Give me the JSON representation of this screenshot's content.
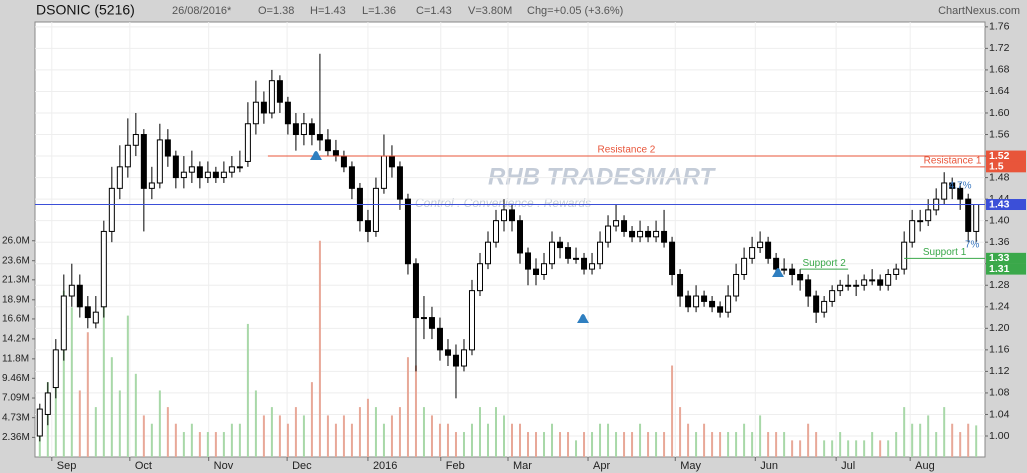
{
  "chart_data": {
    "type": "candlestick",
    "title": "DSONIC (5216)",
    "date": "26/08/2016*",
    "info": [
      "O=1.38",
      "H=1.43",
      "L=1.36",
      "C=1.43",
      "V=3.80M",
      "Chg=+0.05 (+3.6%)"
    ],
    "source": "ChartNexus.com",
    "watermark": "RHB TRADESMART",
    "watermark_tagline": "Control . Convenience . Rewards",
    "grid": true,
    "up_color": "#ffffff",
    "down_color": "#000000",
    "volume_up_color": "#a8d8a8",
    "volume_down_color": "#e8a898",
    "xlim": [
      -0.6,
      118.1
    ],
    "xticks": [
      {
        "value": 1.5,
        "label": "Sep"
      },
      {
        "value": 11.25,
        "label": "Oct"
      },
      {
        "value": 21.1,
        "label": "Nov"
      },
      {
        "value": 30.9,
        "label": "Dec"
      },
      {
        "value": 41,
        "label": "2016"
      },
      {
        "value": 50.1,
        "label": "Feb"
      },
      {
        "value": 58.5,
        "label": "Mar"
      },
      {
        "value": 68.5,
        "label": "Apr"
      },
      {
        "value": 79.4,
        "label": "May"
      },
      {
        "value": 89.4,
        "label": "Jun"
      },
      {
        "value": 99.5,
        "label": "Jul"
      },
      {
        "value": 108.75,
        "label": "Aug"
      }
    ],
    "ylim": [
      0.961,
      1.769
    ],
    "yticks": [
      {
        "value": 1.0,
        "label": "1.00"
      },
      1.04,
      1.08,
      1.12,
      1.16,
      {
        "value": 1.2,
        "label": "1.20"
      },
      1.24,
      1.28,
      1.32,
      1.36,
      {
        "value": 1.4,
        "label": "1.40"
      },
      1.44,
      1.48,
      1.52,
      1.56,
      {
        "value": 1.6,
        "label": "1.60"
      },
      1.64,
      1.68,
      1.72,
      1.76
    ],
    "y2lim": [
      0,
      52.3
    ],
    "y2ticks": [
      {
        "value": 2.36,
        "label": "2.36M"
      },
      {
        "value": 4.73,
        "label": "4.73M"
      },
      {
        "value": 7.09,
        "label": "7.09M"
      },
      {
        "value": 9.46,
        "label": "9.46M"
      },
      {
        "value": 11.8,
        "label": "11.8M"
      },
      {
        "value": 14.2,
        "label": "14.2M"
      },
      {
        "value": 16.6,
        "label": "16.6M"
      },
      {
        "value": 18.9,
        "label": "18.9M"
      },
      {
        "value": 21.3,
        "label": "21.3M"
      },
      {
        "value": 23.6,
        "label": "23.6M"
      },
      {
        "value": 26.0,
        "label": "26.0M"
      }
    ],
    "levels": [
      {
        "name": "Resistance 2",
        "value": 1.52,
        "color": "#e8553a",
        "from": 28.5,
        "to": 118.1
      },
      {
        "name": "Resistance 1",
        "value": 1.5,
        "color": "#e8553a",
        "from": 110,
        "to": 118.1
      },
      {
        "value": 1.43,
        "color": "#3b4fd8",
        "from": -0.6,
        "to": 118.1
      },
      {
        "name": "Support 1",
        "value": 1.33,
        "color": "#3aa84a",
        "from": 108,
        "to": 118.1
      },
      {
        "name": "Support 2",
        "value": 1.31,
        "color": "#3aa84a",
        "from": 95,
        "to": 101
      }
    ],
    "annotations": [
      {
        "text": "4.7%",
        "x": 115,
        "y": 1.465
      },
      {
        "text": "7%",
        "x": 116.5,
        "y": 1.355
      }
    ],
    "candles": [
      [
        1.0,
        1.06,
        0.99,
        1.05
      ],
      [
        1.04,
        1.1,
        1.02,
        1.08
      ],
      [
        1.09,
        1.18,
        1.07,
        1.16
      ],
      [
        1.16,
        1.3,
        1.14,
        1.26
      ],
      [
        1.26,
        1.32,
        1.24,
        1.28
      ],
      [
        1.28,
        1.3,
        1.22,
        1.24
      ],
      [
        1.24,
        1.26,
        1.2,
        1.22
      ],
      [
        1.21,
        1.26,
        1.2,
        1.23
      ],
      [
        1.24,
        1.4,
        1.22,
        1.38
      ],
      [
        1.38,
        1.5,
        1.36,
        1.46
      ],
      [
        1.46,
        1.54,
        1.44,
        1.5
      ],
      [
        1.5,
        1.59,
        1.48,
        1.54
      ],
      [
        1.54,
        1.6,
        1.52,
        1.56
      ],
      [
        1.56,
        1.57,
        1.38,
        1.46
      ],
      [
        1.46,
        1.5,
        1.44,
        1.47
      ],
      [
        1.47,
        1.58,
        1.46,
        1.55
      ],
      [
        1.55,
        1.57,
        1.5,
        1.52
      ],
      [
        1.52,
        1.53,
        1.46,
        1.48
      ],
      [
        1.48,
        1.52,
        1.46,
        1.49
      ],
      [
        1.49,
        1.53,
        1.47,
        1.5
      ],
      [
        1.5,
        1.51,
        1.46,
        1.48
      ],
      [
        1.48,
        1.51,
        1.47,
        1.49
      ],
      [
        1.49,
        1.5,
        1.47,
        1.48
      ],
      [
        1.48,
        1.51,
        1.47,
        1.49
      ],
      [
        1.49,
        1.52,
        1.48,
        1.5
      ],
      [
        1.5,
        1.53,
        1.49,
        1.5
      ],
      [
        1.51,
        1.62,
        1.5,
        1.58
      ],
      [
        1.58,
        1.66,
        1.56,
        1.62
      ],
      [
        1.62,
        1.64,
        1.58,
        1.6
      ],
      [
        1.6,
        1.68,
        1.59,
        1.66
      ],
      [
        1.66,
        1.67,
        1.6,
        1.62
      ],
      [
        1.62,
        1.63,
        1.56,
        1.58
      ],
      [
        1.58,
        1.6,
        1.53,
        1.56
      ],
      [
        1.56,
        1.6,
        1.54,
        1.58
      ],
      [
        1.58,
        1.59,
        1.54,
        1.56
      ],
      [
        1.56,
        1.71,
        1.53,
        1.55
      ],
      [
        1.55,
        1.57,
        1.52,
        1.53
      ],
      [
        1.53,
        1.55,
        1.51,
        1.52
      ],
      [
        1.52,
        1.53,
        1.49,
        1.5
      ],
      [
        1.5,
        1.51,
        1.44,
        1.46
      ],
      [
        1.46,
        1.47,
        1.38,
        1.4
      ],
      [
        1.4,
        1.42,
        1.36,
        1.38
      ],
      [
        1.38,
        1.48,
        1.37,
        1.46
      ],
      [
        1.46,
        1.56,
        1.45,
        1.52
      ],
      [
        1.52,
        1.54,
        1.48,
        1.5
      ],
      [
        1.5,
        1.51,
        1.42,
        1.44
      ],
      [
        1.44,
        1.45,
        1.3,
        1.32
      ],
      [
        1.32,
        1.33,
        1.12,
        1.22
      ],
      [
        1.22,
        1.26,
        1.18,
        1.22
      ],
      [
        1.22,
        1.24,
        1.18,
        1.2
      ],
      [
        1.2,
        1.22,
        1.14,
        1.16
      ],
      [
        1.16,
        1.18,
        1.13,
        1.15
      ],
      [
        1.15,
        1.17,
        1.07,
        1.13
      ],
      [
        1.13,
        1.18,
        1.12,
        1.16
      ],
      [
        1.16,
        1.29,
        1.15,
        1.27
      ],
      [
        1.27,
        1.34,
        1.26,
        1.32
      ],
      [
        1.32,
        1.38,
        1.31,
        1.36
      ],
      [
        1.36,
        1.42,
        1.35,
        1.4
      ],
      [
        1.4,
        1.44,
        1.38,
        1.42
      ],
      [
        1.42,
        1.43,
        1.38,
        1.4
      ],
      [
        1.4,
        1.41,
        1.32,
        1.34
      ],
      [
        1.34,
        1.35,
        1.28,
        1.31
      ],
      [
        1.31,
        1.33,
        1.28,
        1.3
      ],
      [
        1.3,
        1.34,
        1.29,
        1.32
      ],
      [
        1.32,
        1.38,
        1.31,
        1.36
      ],
      [
        1.36,
        1.37,
        1.33,
        1.35
      ],
      [
        1.35,
        1.36,
        1.32,
        1.33
      ],
      [
        1.33,
        1.35,
        1.32,
        1.33
      ],
      [
        1.33,
        1.34,
        1.3,
        1.31
      ],
      [
        1.31,
        1.34,
        1.3,
        1.32
      ],
      [
        1.32,
        1.38,
        1.31,
        1.36
      ],
      [
        1.36,
        1.41,
        1.35,
        1.39
      ],
      [
        1.39,
        1.43,
        1.38,
        1.4
      ],
      [
        1.4,
        1.41,
        1.37,
        1.38
      ],
      [
        1.38,
        1.39,
        1.36,
        1.37
      ],
      [
        1.37,
        1.4,
        1.36,
        1.38
      ],
      [
        1.38,
        1.39,
        1.36,
        1.37
      ],
      [
        1.37,
        1.4,
        1.36,
        1.38
      ],
      [
        1.38,
        1.42,
        1.35,
        1.36
      ],
      [
        1.36,
        1.37,
        1.28,
        1.3
      ],
      [
        1.3,
        1.31,
        1.24,
        1.26
      ],
      [
        1.26,
        1.27,
        1.23,
        1.24
      ],
      [
        1.24,
        1.28,
        1.23,
        1.26
      ],
      [
        1.26,
        1.27,
        1.24,
        1.25
      ],
      [
        1.25,
        1.26,
        1.23,
        1.24
      ],
      [
        1.24,
        1.25,
        1.22,
        1.23
      ],
      [
        1.23,
        1.28,
        1.22,
        1.26
      ],
      [
        1.26,
        1.32,
        1.25,
        1.3
      ],
      [
        1.3,
        1.35,
        1.29,
        1.33
      ],
      [
        1.33,
        1.37,
        1.32,
        1.35
      ],
      [
        1.35,
        1.38,
        1.34,
        1.36
      ],
      [
        1.36,
        1.37,
        1.32,
        1.33
      ],
      [
        1.33,
        1.34,
        1.3,
        1.31
      ],
      [
        1.31,
        1.33,
        1.3,
        1.31
      ],
      [
        1.31,
        1.32,
        1.28,
        1.3
      ],
      [
        1.3,
        1.31,
        1.27,
        1.29
      ],
      [
        1.29,
        1.3,
        1.24,
        1.26
      ],
      [
        1.26,
        1.27,
        1.21,
        1.23
      ],
      [
        1.23,
        1.26,
        1.22,
        1.25
      ],
      [
        1.25,
        1.28,
        1.24,
        1.27
      ],
      [
        1.27,
        1.29,
        1.26,
        1.28
      ],
      [
        1.28,
        1.3,
        1.27,
        1.28
      ],
      [
        1.28,
        1.29,
        1.26,
        1.28
      ],
      [
        1.28,
        1.3,
        1.27,
        1.29
      ],
      [
        1.29,
        1.31,
        1.28,
        1.29
      ],
      [
        1.29,
        1.3,
        1.27,
        1.28
      ],
      [
        1.28,
        1.31,
        1.27,
        1.3
      ],
      [
        1.3,
        1.32,
        1.29,
        1.31
      ],
      [
        1.31,
        1.38,
        1.3,
        1.36
      ],
      [
        1.36,
        1.42,
        1.35,
        1.4
      ],
      [
        1.4,
        1.42,
        1.38,
        1.4
      ],
      [
        1.4,
        1.44,
        1.39,
        1.42
      ],
      [
        1.42,
        1.46,
        1.41,
        1.44
      ],
      [
        1.44,
        1.49,
        1.43,
        1.47
      ],
      [
        1.47,
        1.48,
        1.44,
        1.46
      ],
      [
        1.46,
        1.47,
        1.42,
        1.44
      ],
      [
        1.44,
        1.45,
        1.36,
        1.38
      ],
      [
        1.38,
        1.43,
        1.36,
        1.43
      ]
    ],
    "volumes": [
      5,
      9,
      11,
      20,
      18,
      8,
      15,
      6,
      21,
      12,
      8,
      17,
      10,
      5,
      4,
      8,
      6,
      4,
      3,
      4,
      3,
      3,
      3,
      3,
      4,
      4,
      16,
      8,
      5,
      6,
      5,
      4,
      6,
      5,
      9,
      26,
      5,
      4,
      5,
      4,
      6,
      7,
      6,
      4,
      5,
      6,
      12,
      11,
      6,
      5,
      4,
      4,
      3,
      3,
      4,
      6,
      4,
      6,
      5,
      4,
      4,
      3,
      3,
      3,
      4,
      3,
      3,
      2,
      3,
      3,
      4,
      4,
      3,
      3,
      3,
      4,
      3,
      3,
      3,
      11,
      6,
      4,
      3,
      4,
      3,
      3,
      3,
      3,
      4,
      3,
      5,
      3,
      3,
      3,
      2,
      2,
      4,
      3,
      2,
      2,
      3,
      2,
      2,
      2,
      3,
      2,
      2,
      3,
      6,
      4,
      4,
      5,
      3,
      6,
      4,
      3,
      4,
      3.8
    ]
  }
}
